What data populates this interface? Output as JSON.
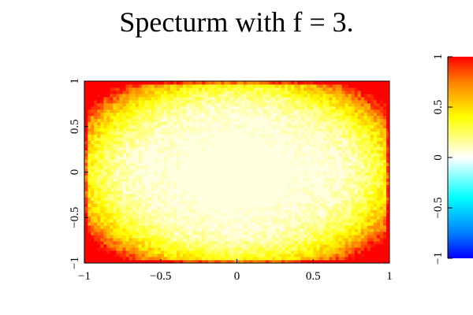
{
  "chart_data": {
    "type": "heatmap",
    "title": "Specturm with f = 3.",
    "xlim": [
      -1,
      1
    ],
    "ylim": [
      -1,
      1
    ],
    "x_ticks": [
      -1,
      -0.5,
      0,
      0.5,
      1
    ],
    "y_ticks": [
      -1,
      -0.5,
      0,
      0.5,
      1
    ],
    "x_tick_labels": [
      "−1",
      "−0.5",
      "0",
      "0.5",
      "1"
    ],
    "y_tick_labels": [
      "−1",
      "−0.5",
      "0",
      "0.5",
      "1"
    ],
    "colorbar": {
      "range": [
        -1,
        1
      ],
      "ticks": [
        -1,
        -0.5,
        0,
        0.5,
        1
      ],
      "tick_labels": [
        "−1",
        "−0.5",
        "0",
        "0.5",
        "1"
      ],
      "colormap": [
        {
          "value": -1,
          "color": "#0000ff"
        },
        {
          "value": -0.75,
          "color": "#0080ff"
        },
        {
          "value": -0.4,
          "color": "#00ffff"
        },
        {
          "value": 0,
          "color": "#ffffff"
        },
        {
          "value": 0.4,
          "color": "#ffff00"
        },
        {
          "value": 0.75,
          "color": "#ff8000"
        },
        {
          "value": 1,
          "color": "#ff0000"
        }
      ]
    },
    "field_description_values": {
      "center_value": 0.05,
      "edge_value": 0.45,
      "corner_value": 1.0
    },
    "grid": false,
    "legend": "none"
  }
}
